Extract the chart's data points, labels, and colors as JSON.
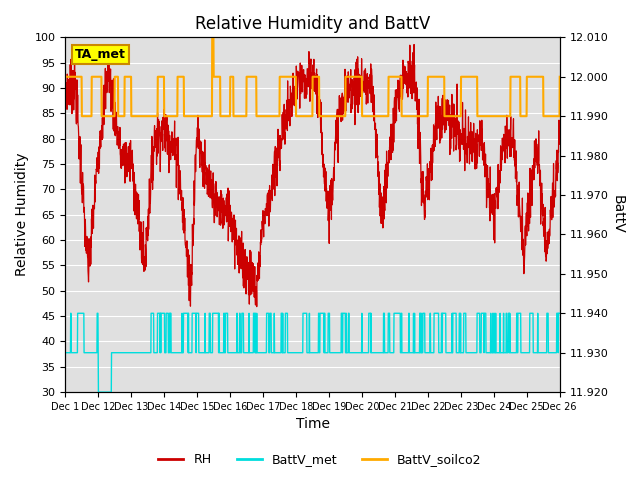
{
  "title": "Relative Humidity and BattV",
  "xlabel": "Time",
  "ylabel_left": "Relative Humidity",
  "ylabel_right": "BattV",
  "ylim_left": [
    30,
    100
  ],
  "ylim_right": [
    11.92,
    12.01
  ],
  "yticks_left": [
    30,
    35,
    40,
    45,
    50,
    55,
    60,
    65,
    70,
    75,
    80,
    85,
    90,
    95,
    100
  ],
  "yticks_right": [
    11.92,
    11.93,
    11.94,
    11.95,
    11.96,
    11.97,
    11.98,
    11.99,
    12.0,
    12.01
  ],
  "xtick_positions": [
    0,
    1,
    2,
    3,
    4,
    5,
    6,
    7,
    8,
    9,
    10,
    11,
    12,
    13,
    14,
    15
  ],
  "xtick_labels": [
    "Dec 1",
    "Dec 12",
    "Dec 13",
    "Dec 14",
    "Dec 15",
    "Dec 16",
    "Dec 17",
    "Dec 18",
    "Dec 19",
    "Dec 20",
    "Dec 21",
    "Dec 22",
    "Dec 23",
    "Dec 24",
    "Dec 25",
    "Dec 26"
  ],
  "color_RH": "#cc0000",
  "color_BattV_met": "#00dddd",
  "color_BattV_soilco2": "#ffaa00",
  "color_annotation_bg": "#ffff00",
  "color_annotation_border": "#cc8800",
  "annotation_text": "TA_met",
  "bg_color": "#e0e0e0",
  "grid_color": "#ffffff",
  "title_fontsize": 12,
  "axis_label_fontsize": 10,
  "tick_fontsize": 8,
  "legend_fontsize": 9,
  "BattV_met_low": 11.93,
  "BattV_met_high": 11.94,
  "BattV_met_dip": 11.92,
  "BattV_soilco2_low": 11.99,
  "BattV_soilco2_high": 12.0,
  "BattV_soilco2_spike": 12.01
}
